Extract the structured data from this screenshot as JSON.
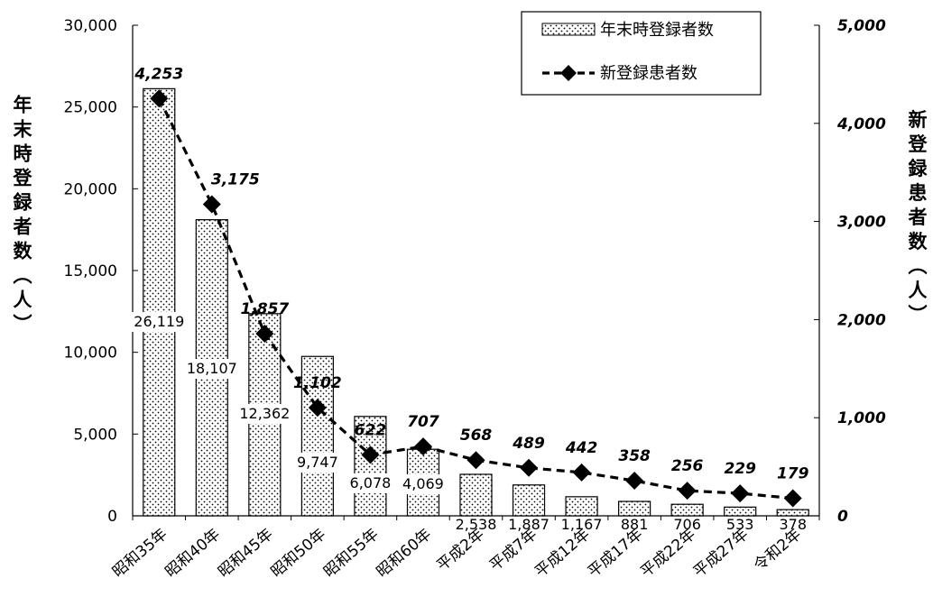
{
  "chart_data": {
    "type": "bar",
    "categories": [
      "昭和35年",
      "昭和40年",
      "昭和45年",
      "昭和50年",
      "昭和55年",
      "昭和60年",
      "平成2年",
      "平成7年",
      "平成12年",
      "平成17年",
      "平成22年",
      "平成27年",
      "令和2年"
    ],
    "series": [
      {
        "name": "年末時登録者数",
        "type": "bar",
        "axis": "left",
        "values": [
          26119,
          18107,
          12362,
          9747,
          6078,
          4069,
          2538,
          1887,
          1167,
          881,
          706,
          533,
          378
        ],
        "labels": [
          "26,119",
          "18,107",
          "12,362",
          "9,747",
          "6,078",
          "4,069",
          "2,538",
          "1,887",
          "1,167",
          "881",
          "706",
          "533",
          "378"
        ]
      },
      {
        "name": "新登録患者数",
        "type": "line",
        "axis": "right",
        "values": [
          4253,
          3175,
          1857,
          1102,
          622,
          707,
          568,
          489,
          442,
          358,
          256,
          229,
          179
        ],
        "labels": [
          "4,253",
          "3,175",
          "1,857",
          "1,102",
          "622",
          "707",
          "568",
          "489",
          "442",
          "358",
          "256",
          "229",
          "179"
        ]
      }
    ],
    "ylabel": "年末時登録者数（人）",
    "y2label": "新登録患者数（人）",
    "ylim": [
      0,
      30000
    ],
    "y2lim": [
      0,
      5000
    ],
    "yticks": [
      "0",
      "5,000",
      "10,000",
      "15,000",
      "20,000",
      "25,000",
      "30,000"
    ],
    "y2ticks": [
      "0",
      "1,000",
      "2,000",
      "3,000",
      "4,000",
      "5,000"
    ],
    "legend": {
      "position": "top-right",
      "bar_label": "年末時登録者数",
      "line_label": "新登録患者数"
    },
    "grid": false
  }
}
